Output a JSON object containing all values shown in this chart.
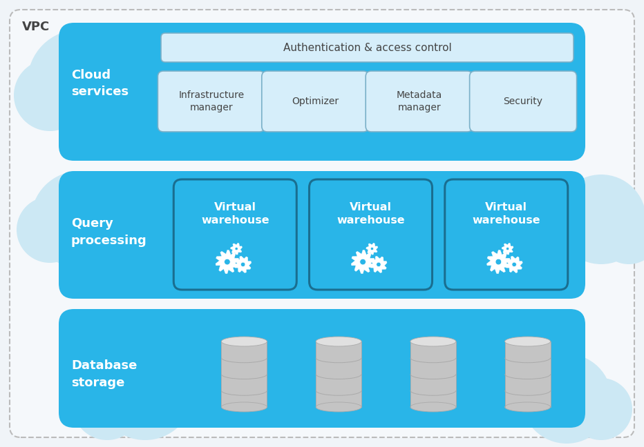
{
  "background_color": "#f0f4f8",
  "vpc_label": "VPC",
  "vpc_label_color": "#444444",
  "vpc_bg_color": "#e8eef4",
  "layer_blue": "#29b5e8",
  "layer_blue_lighter": "#4dc3ed",
  "cloud_blob_color": "#cce8f4",
  "cloud_services": {
    "label": "Cloud\nservices",
    "auth_text": "Authentication & access control",
    "auth_fill": "#d6eefa",
    "auth_border": "#7ab0c8",
    "sub_fill": "#d6eefa",
    "sub_border": "#7ab0c8",
    "sub_labels": [
      "Infrastructure\nmanager",
      "Optimizer",
      "Metadata\nmanager",
      "Security"
    ]
  },
  "query_processing": {
    "label": "Query\nprocessing",
    "wh_fill": "#29b5e8",
    "wh_border": "#1a6e90",
    "wh_labels": [
      "Virtual\nwarehouse",
      "Virtual\nwarehouse",
      "Virtual\nwarehouse"
    ]
  },
  "database_storage": {
    "label": "Database\nstorage"
  },
  "text_white": "#ffffff",
  "text_dark": "#444444"
}
